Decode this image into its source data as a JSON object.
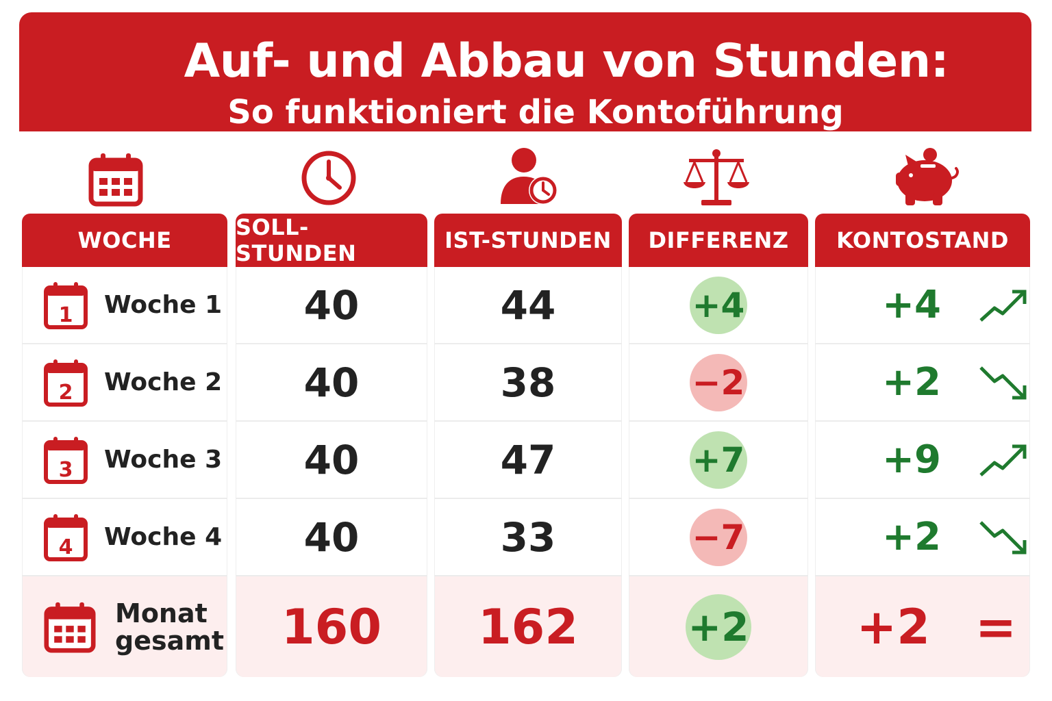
{
  "header": {
    "title": "Auf- und Abbau von Stunden:",
    "subtitle": "So funktioniert die Kontoführung"
  },
  "columns": [
    {
      "label": "WOCHE",
      "icon": "calendar-icon"
    },
    {
      "label": "SOLL-STUNDEN",
      "icon": "clock-icon"
    },
    {
      "label": "IST-STUNDEN",
      "icon": "person-clock-icon"
    },
    {
      "label": "DIFFERENZ",
      "icon": "scale-icon"
    },
    {
      "label": "KONTOSTAND",
      "icon": "piggy-bank-icon"
    }
  ],
  "rows": [
    {
      "num": "1",
      "week": "Woche 1",
      "soll": "40",
      "ist": "44",
      "diff": "+4",
      "konto": "+4",
      "trend": "up"
    },
    {
      "num": "2",
      "week": "Woche 2",
      "soll": "40",
      "ist": "38",
      "diff": "−2",
      "konto": "+2",
      "trend": "down"
    },
    {
      "num": "3",
      "week": "Woche 3",
      "soll": "40",
      "ist": "47",
      "diff": "+7",
      "konto": "+9",
      "trend": "up"
    },
    {
      "num": "4",
      "week": "Woche 4",
      "soll": "40",
      "ist": "33",
      "diff": "−7",
      "konto": "+2",
      "trend": "down"
    }
  ],
  "total": {
    "label_line1": "Monat",
    "label_line2": "gesamt",
    "soll": "160",
    "ist": "162",
    "diff": "+2",
    "konto": "+2",
    "symbol": "="
  },
  "colors": {
    "brand_red": "#c91d22",
    "positive_green": "#1f7a2e",
    "positive_bg": "#bfe2b1",
    "negative_bg": "#f4b9b7",
    "total_row_bg": "#fdeeee"
  }
}
